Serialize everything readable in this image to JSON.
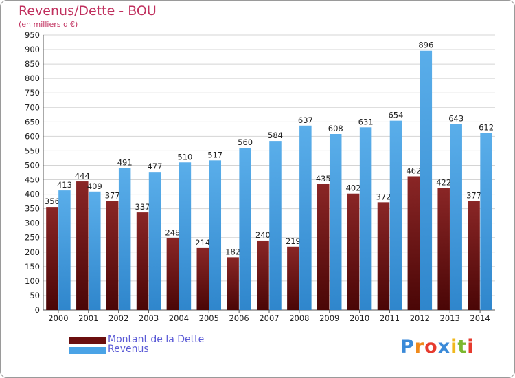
{
  "header": {
    "title": "Revenus/Dette - BOU",
    "subtitle": "(en milliers d'€)"
  },
  "chart_data": {
    "type": "bar",
    "title": "Revenus/Dette - BOU",
    "subtitle": "(en milliers d'€)",
    "xlabel": "",
    "ylabel": "",
    "ylim": [
      0,
      950
    ],
    "ytick_step": 50,
    "grid": true,
    "legend_position": "bottom-left",
    "categories": [
      "2000",
      "2001",
      "2002",
      "2003",
      "2004",
      "2005",
      "2006",
      "2007",
      "2008",
      "2009",
      "2010",
      "2011",
      "2012",
      "2013",
      "2014"
    ],
    "series": [
      {
        "name": "Montant de la Dette",
        "color": "#7a1a1a",
        "values": [
          356,
          444,
          377,
          337,
          248,
          214,
          182,
          240,
          219,
          435,
          402,
          372,
          462,
          422,
          377
        ]
      },
      {
        "name": "Revenus",
        "color": "#4aa3e6",
        "values": [
          413,
          409,
          491,
          477,
          510,
          517,
          560,
          584,
          637,
          608,
          631,
          654,
          896,
          643,
          612
        ]
      }
    ]
  },
  "legend": {
    "items": [
      {
        "label": "Montant de la Dette",
        "color": "#6b0f0f"
      },
      {
        "label": "Revenus",
        "color": "#4aa3e6"
      }
    ]
  },
  "logo": {
    "text": "Proxiti",
    "letters": [
      {
        "char": "P",
        "color": "#3b8ad8"
      },
      {
        "char": "r",
        "color": "#f08a1c"
      },
      {
        "char": "o",
        "color": "#e63b2e"
      },
      {
        "char": "x",
        "color": "#3b8ad8"
      },
      {
        "char": "i",
        "color": "#f0b81c"
      },
      {
        "char": "t",
        "color": "#7cb82f"
      },
      {
        "char": "i",
        "color": "#e63b2e"
      }
    ]
  }
}
